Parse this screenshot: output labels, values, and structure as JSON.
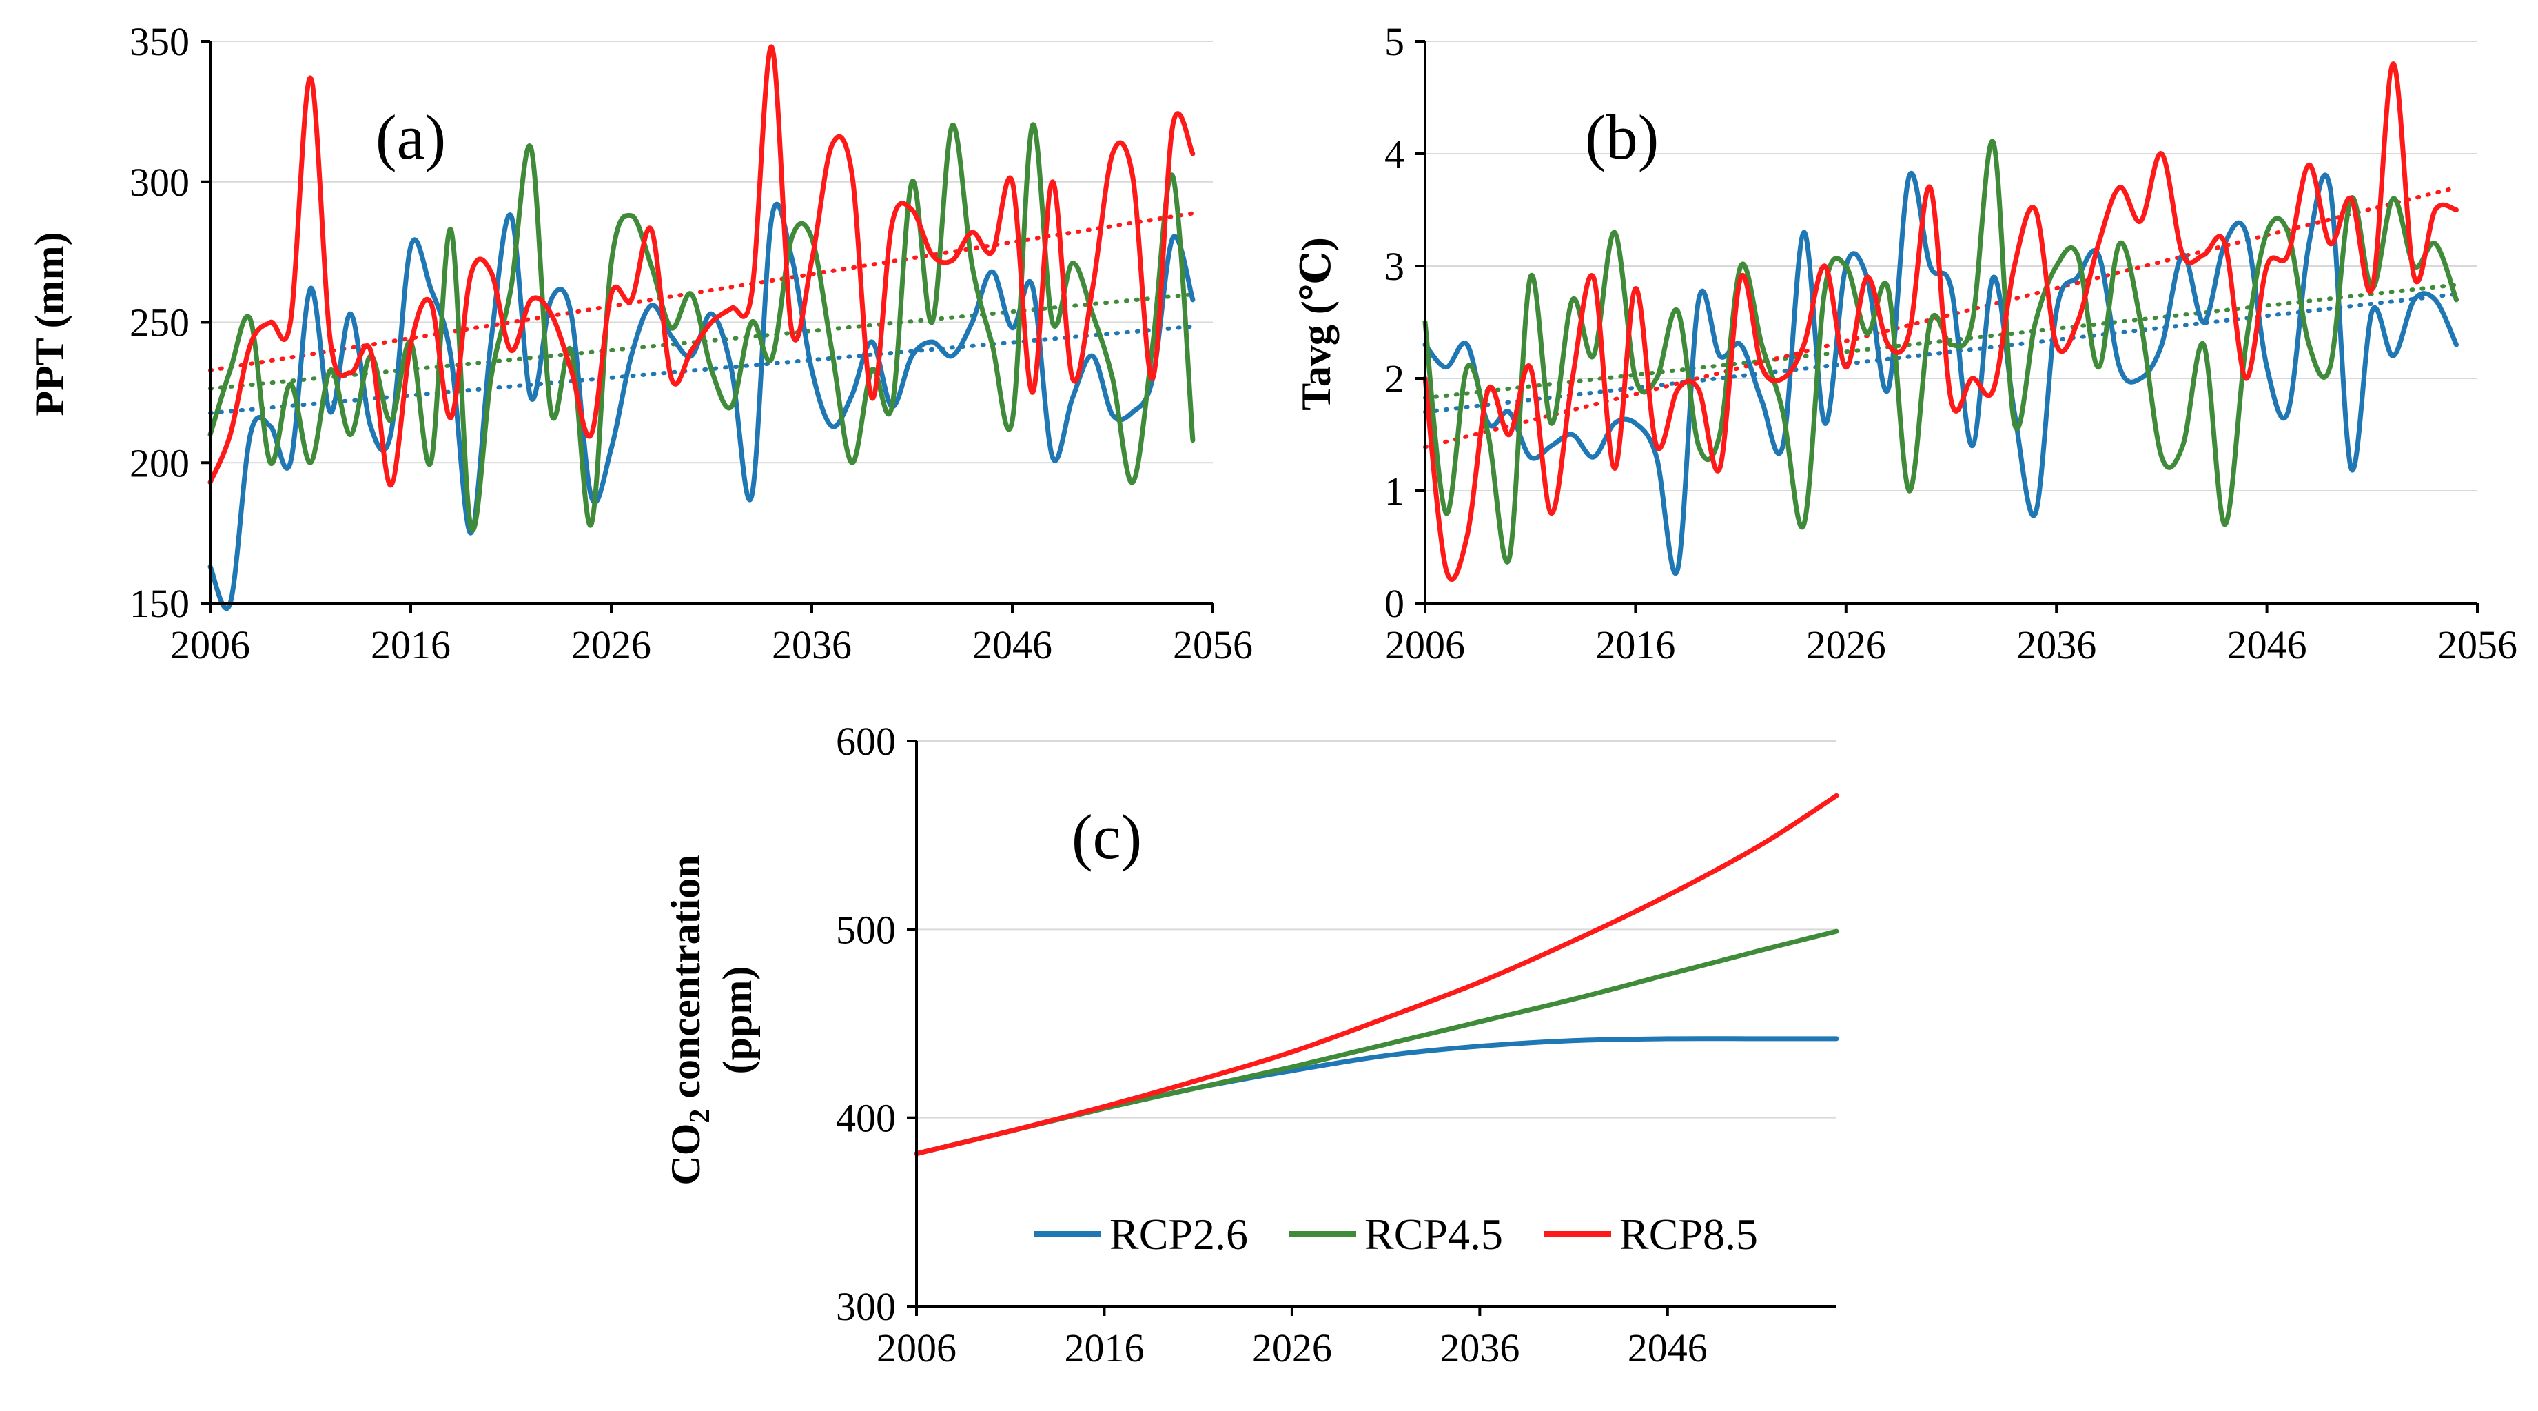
{
  "figure": {
    "legend": [
      {
        "label": "RCP2.6",
        "color": "#1f77b4"
      },
      {
        "label": "RCP4.5",
        "color": "#3f8b3a"
      },
      {
        "label": "RCP8.5",
        "color": "#ff1a1a"
      }
    ]
  },
  "chart_data": [
    {
      "type": "line",
      "panel_label": "(a)",
      "title": "",
      "xlabel": "",
      "ylabel": "PPT (mm)",
      "xlim": [
        2006,
        2056
      ],
      "ylim": [
        150,
        350
      ],
      "xticks": [
        2006,
        2016,
        2026,
        2036,
        2046,
        2056
      ],
      "yticks": [
        150,
        200,
        250,
        300,
        350
      ],
      "grid": true,
      "trendlines": true,
      "x": [
        2006,
        2007,
        2008,
        2009,
        2010,
        2011,
        2012,
        2013,
        2014,
        2015,
        2016,
        2017,
        2018,
        2019,
        2020,
        2021,
        2022,
        2023,
        2024,
        2025,
        2026,
        2027,
        2028,
        2029,
        2030,
        2031,
        2032,
        2033,
        2034,
        2035,
        2036,
        2037,
        2038,
        2039,
        2040,
        2041,
        2042,
        2043,
        2044,
        2045,
        2046,
        2047,
        2048,
        2049,
        2050,
        2051,
        2052,
        2053,
        2054,
        2055
      ],
      "series": [
        {
          "name": "RCP2.6",
          "color": "#1f77b4",
          "values": [
            163,
            145,
            210,
            213,
            200,
            262,
            218,
            253,
            213,
            210,
            277,
            262,
            238,
            175,
            243,
            288,
            223,
            258,
            253,
            188,
            205,
            238,
            256,
            245,
            238,
            253,
            233,
            188,
            287,
            273,
            233,
            213,
            224,
            243,
            220,
            238,
            243,
            238,
            250,
            268,
            248,
            263,
            202,
            223,
            238,
            217,
            218,
            230,
            280,
            258
          ]
        },
        {
          "name": "RCP4.5",
          "color": "#3f8b3a",
          "values": [
            210,
            233,
            251,
            200,
            228,
            200,
            233,
            210,
            238,
            215,
            243,
            200,
            283,
            177,
            230,
            262,
            312,
            218,
            240,
            178,
            271,
            288,
            270,
            248,
            260,
            233,
            220,
            250,
            237,
            280,
            280,
            240,
            200,
            233,
            220,
            300,
            250,
            320,
            270,
            242,
            215,
            320,
            250,
            271,
            253,
            230,
            193,
            242,
            302,
            208
          ]
        },
        {
          "name": "RCP8.5",
          "color": "#ff1a1a",
          "values": [
            193,
            210,
            242,
            250,
            250,
            337,
            243,
            232,
            240,
            192,
            242,
            257,
            216,
            267,
            268,
            240,
            258,
            253,
            233,
            210,
            260,
            258,
            283,
            230,
            240,
            250,
            255,
            260,
            348,
            247,
            272,
            313,
            303,
            223,
            285,
            290,
            274,
            272,
            282,
            275,
            300,
            225,
            300,
            230,
            262,
            310,
            302,
            230,
            320,
            310
          ]
        }
      ]
    },
    {
      "type": "line",
      "panel_label": "(b)",
      "title": "",
      "xlabel": "",
      "ylabel": "Tavg (℃)",
      "xlim": [
        2006,
        2056
      ],
      "ylim": [
        0,
        5
      ],
      "xticks": [
        2006,
        2016,
        2026,
        2036,
        2046,
        2056
      ],
      "yticks": [
        0,
        1,
        2,
        3,
        4,
        5
      ],
      "grid": true,
      "trendlines": true,
      "x": [
        2006,
        2007,
        2008,
        2009,
        2010,
        2011,
        2012,
        2013,
        2014,
        2015,
        2016,
        2017,
        2018,
        2019,
        2020,
        2021,
        2022,
        2023,
        2024,
        2025,
        2026,
        2027,
        2028,
        2029,
        2030,
        2031,
        2032,
        2033,
        2034,
        2035,
        2036,
        2037,
        2038,
        2039,
        2040,
        2041,
        2042,
        2043,
        2044,
        2045,
        2046,
        2047,
        2048,
        2049,
        2050,
        2051,
        2052,
        2053,
        2054,
        2055
      ],
      "series": [
        {
          "name": "RCP2.6",
          "color": "#1f77b4",
          "values": [
            2.3,
            2.1,
            2.3,
            1.6,
            1.7,
            1.3,
            1.4,
            1.5,
            1.3,
            1.6,
            1.6,
            1.3,
            0.3,
            2.7,
            2.2,
            2.3,
            1.8,
            1.4,
            3.3,
            1.6,
            3.0,
            2.9,
            1.9,
            3.8,
            3.0,
            2.8,
            1.4,
            2.9,
            1.7,
            0.8,
            2.6,
            2.9,
            3.1,
            2.1,
            2.0,
            2.3,
            3.1,
            2.5,
            3.2,
            3.3,
            2.1,
            1.7,
            3.2,
            3.7,
            1.2,
            2.6,
            2.2,
            2.7,
            2.7,
            2.3
          ]
        },
        {
          "name": "RCP4.5",
          "color": "#3f8b3a",
          "values": [
            2.5,
            0.8,
            2.1,
            1.5,
            0.4,
            2.9,
            1.6,
            2.7,
            2.2,
            3.3,
            2.0,
            2.0,
            2.6,
            1.4,
            1.5,
            3.0,
            2.3,
            1.7,
            0.7,
            2.8,
            3.0,
            2.4,
            2.8,
            1.0,
            2.5,
            2.3,
            2.5,
            4.1,
            1.6,
            2.5,
            3.0,
            3.1,
            2.1,
            3.2,
            2.5,
            1.3,
            1.4,
            2.3,
            0.7,
            2.3,
            3.3,
            3.3,
            2.3,
            2.1,
            3.6,
            2.8,
            3.6,
            3.0,
            3.2,
            2.7
          ]
        },
        {
          "name": "RCP8.5",
          "color": "#ff1a1a",
          "values": [
            2.0,
            0.3,
            0.6,
            1.9,
            1.5,
            2.1,
            0.8,
            2.0,
            2.9,
            1.2,
            2.8,
            1.4,
            1.9,
            1.9,
            1.2,
            2.9,
            2.1,
            2.0,
            2.3,
            3.0,
            2.1,
            2.9,
            2.3,
            2.4,
            3.7,
            1.8,
            2.0,
            1.9,
            3.0,
            3.5,
            2.3,
            2.5,
            3.2,
            3.7,
            3.4,
            4.0,
            3.1,
            3.1,
            3.2,
            2.0,
            3.0,
            3.1,
            3.9,
            3.2,
            3.6,
            2.8,
            4.8,
            2.9,
            3.5,
            3.5
          ]
        }
      ]
    },
    {
      "type": "line",
      "panel_label": "(c)",
      "title": "",
      "xlabel": "",
      "ylabel": "CO2 concentration (ppm)",
      "ylabel_main": "CO",
      "ylabel_sub": "2",
      "ylabel_rest": " concentration",
      "ylabel_units": "(ppm)",
      "xlim": [
        2006,
        2055
      ],
      "ylim": [
        300,
        600
      ],
      "xticks": [
        2006,
        2016,
        2026,
        2036,
        2046
      ],
      "yticks": [
        300,
        400,
        500,
        600
      ],
      "grid": true,
      "legend_position": "bottom-inside",
      "x": [
        2006,
        2011,
        2016,
        2021,
        2026,
        2031,
        2036,
        2041,
        2046,
        2051,
        2055
      ],
      "series": [
        {
          "name": "RCP2.6",
          "color": "#1f77b4",
          "values": [
            381,
            393,
            405,
            416,
            425,
            433,
            438,
            441,
            442,
            442,
            442
          ]
        },
        {
          "name": "RCP4.5",
          "color": "#3f8b3a",
          "values": [
            381,
            393,
            405,
            416,
            427,
            439,
            451,
            463,
            476,
            489,
            499
          ]
        },
        {
          "name": "RCP8.5",
          "color": "#ff1a1a",
          "values": [
            381,
            393,
            406,
            420,
            435,
            453,
            472,
            494,
            518,
            545,
            571
          ]
        }
      ]
    }
  ]
}
